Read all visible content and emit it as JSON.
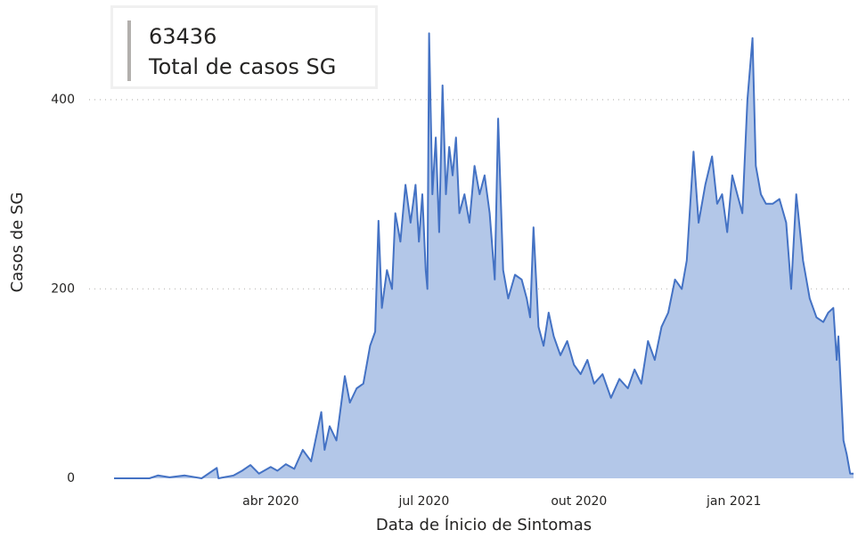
{
  "chart_data": {
    "type": "area",
    "card": {
      "value": "63436",
      "label": "Total de casos SG"
    },
    "ylabel": "Casos de SG",
    "xlabel": "Data de Ínicio de Sintomas",
    "color": "#4472c4",
    "fill": "#b3c7e8",
    "grid": true,
    "xlim": [
      "2019-12-30",
      "2021-03-13"
    ],
    "ylim": [
      0,
      477
    ],
    "yticks": [
      0,
      200,
      400
    ],
    "xticks": [
      {
        "value": "2020-04-01",
        "label": "abr 2020"
      },
      {
        "value": "2020-07-01",
        "label": "jul 2020"
      },
      {
        "value": "2020-10-01",
        "label": "out 2020"
      },
      {
        "value": "2021-01-01",
        "label": "jan 2021"
      }
    ],
    "x": [
      "2019-12-30",
      "2020-01-10",
      "2020-01-20",
      "2020-01-25",
      "2020-02-01",
      "2020-02-10",
      "2020-02-20",
      "2020-02-29",
      "2020-03-01",
      "2020-03-10",
      "2020-03-15",
      "2020-03-20",
      "2020-03-25",
      "2020-04-01",
      "2020-04-05",
      "2020-04-10",
      "2020-04-15",
      "2020-04-20",
      "2020-04-25",
      "2020-05-01",
      "2020-05-03",
      "2020-05-06",
      "2020-05-10",
      "2020-05-15",
      "2020-05-18",
      "2020-05-22",
      "2020-05-26",
      "2020-05-30",
      "2020-06-02",
      "2020-06-04",
      "2020-06-06",
      "2020-06-09",
      "2020-06-12",
      "2020-06-14",
      "2020-06-17",
      "2020-06-20",
      "2020-06-23",
      "2020-06-26",
      "2020-06-28",
      "2020-06-30",
      "2020-07-02",
      "2020-07-03",
      "2020-07-04",
      "2020-07-06",
      "2020-07-08",
      "2020-07-10",
      "2020-07-12",
      "2020-07-14",
      "2020-07-16",
      "2020-07-18",
      "2020-07-20",
      "2020-07-22",
      "2020-07-25",
      "2020-07-28",
      "2020-07-31",
      "2020-08-03",
      "2020-08-06",
      "2020-08-09",
      "2020-08-12",
      "2020-08-14",
      "2020-08-17",
      "2020-08-20",
      "2020-08-24",
      "2020-08-28",
      "2020-08-31",
      "2020-09-02",
      "2020-09-04",
      "2020-09-07",
      "2020-09-10",
      "2020-09-13",
      "2020-09-16",
      "2020-09-20",
      "2020-09-24",
      "2020-09-28",
      "2020-10-02",
      "2020-10-06",
      "2020-10-10",
      "2020-10-15",
      "2020-10-20",
      "2020-10-25",
      "2020-10-30",
      "2020-11-03",
      "2020-11-07",
      "2020-11-11",
      "2020-11-15",
      "2020-11-19",
      "2020-11-23",
      "2020-11-27",
      "2020-12-01",
      "2020-12-04",
      "2020-12-08",
      "2020-12-11",
      "2020-12-15",
      "2020-12-19",
      "2020-12-22",
      "2020-12-25",
      "2020-12-28",
      "2020-12-31",
      "2021-01-03",
      "2021-01-06",
      "2021-01-09",
      "2021-01-12",
      "2021-01-14",
      "2021-01-17",
      "2021-01-20",
      "2021-01-24",
      "2021-01-28",
      "2021-02-01",
      "2021-02-04",
      "2021-02-07",
      "2021-02-11",
      "2021-02-15",
      "2021-02-19",
      "2021-02-23",
      "2021-02-26",
      "2021-03-01",
      "2021-03-03",
      "2021-03-04",
      "2021-03-07",
      "2021-03-09",
      "2021-03-11",
      "2021-03-13"
    ],
    "values": [
      0,
      0,
      0,
      3,
      1,
      3,
      0,
      11,
      0,
      3,
      8,
      14,
      5,
      12,
      8,
      15,
      10,
      30,
      18,
      70,
      30,
      55,
      40,
      108,
      80,
      95,
      100,
      140,
      155,
      272,
      180,
      220,
      200,
      280,
      250,
      310,
      270,
      310,
      250,
      300,
      220,
      200,
      470,
      300,
      360,
      260,
      415,
      300,
      350,
      320,
      360,
      280,
      300,
      270,
      330,
      300,
      320,
      280,
      210,
      380,
      220,
      190,
      215,
      210,
      190,
      170,
      265,
      160,
      140,
      175,
      150,
      130,
      145,
      120,
      110,
      125,
      100,
      110,
      85,
      105,
      95,
      115,
      100,
      145,
      125,
      160,
      175,
      210,
      200,
      230,
      345,
      270,
      310,
      340,
      290,
      300,
      260,
      320,
      300,
      280,
      400,
      465,
      330,
      300,
      290,
      290,
      295,
      270,
      200,
      300,
      230,
      190,
      170,
      165,
      175,
      180,
      125,
      150,
      40,
      25,
      5,
      5
    ]
  }
}
